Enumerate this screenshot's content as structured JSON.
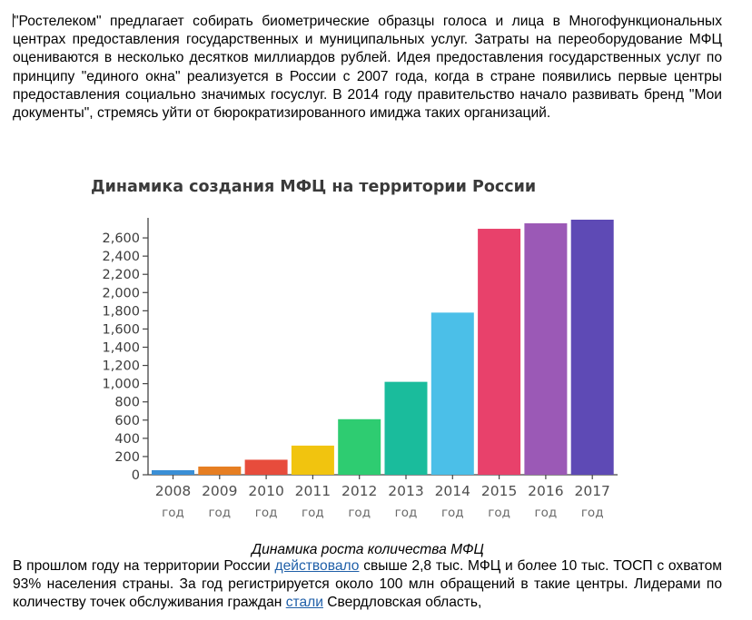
{
  "document": {
    "intro_paragraph": {
      "segments": [
        {
          "text": "\"Ростелеком\" предлагает собирать биометрические образцы голоса и лица в Многофункциональных центрах предоставления государственных и муниципальных услуг. Затраты на переоборудование МФЦ оцениваются в несколько десятков миллиардов рублей. Идея предоставления государственных услуг по принципу \"единого окна\" реализуется в России с 2007 года, когда в стране появились первые центры предоставления социально значимых госуслуг. В 2014 году правительство начало развивать бренд \"Мои документы\", стремясь уйти от бюрократизированного имиджа таких организаций."
        }
      ]
    },
    "figure_caption": "Динамика роста количества МФЦ",
    "outro_paragraph": {
      "text_1": "В прошлом году на территории России ",
      "link_1": "действовало",
      "text_2": " свыше 2,8 тыс. МФЦ и более 10 тыс. ТОСП с охватом 93% населения страны. За год регистрируется около 100 млн обращений в такие центры. Лидерами по количеству точек обслуживания граждан ",
      "link_2": "стали",
      "text_3": " Свердловская область,"
    }
  },
  "chart_data": {
    "type": "bar",
    "title": "Динамика создания МФЦ на территории России",
    "categories": [
      "2008",
      "2009",
      "2010",
      "2011",
      "2012",
      "2013",
      "2014",
      "2015",
      "2016",
      "2017"
    ],
    "category_sublabel": "год",
    "values": [
      50,
      90,
      165,
      320,
      610,
      1020,
      1780,
      2700,
      2760,
      2800
    ],
    "bar_colors": [
      "#3a8fd6",
      "#e67e22",
      "#e74c3c",
      "#f1c40f",
      "#2ecc71",
      "#1abc9c",
      "#4bbfe8",
      "#e8416b",
      "#9b59b6",
      "#5e4ab5"
    ],
    "yticks": [
      0,
      200,
      400,
      600,
      800,
      1000,
      1200,
      1400,
      1600,
      1800,
      2000,
      2200,
      2400,
      2600
    ],
    "ytick_labels": [
      "0",
      "200",
      "400",
      "600",
      "800",
      "1,000",
      "1,200",
      "1,400",
      "1,600",
      "1,800",
      "2,000",
      "2,200",
      "2,400",
      "2,600"
    ],
    "ylim": [
      0,
      2800
    ],
    "xlabel": "",
    "ylabel": "",
    "grid": false,
    "legend": "none"
  }
}
